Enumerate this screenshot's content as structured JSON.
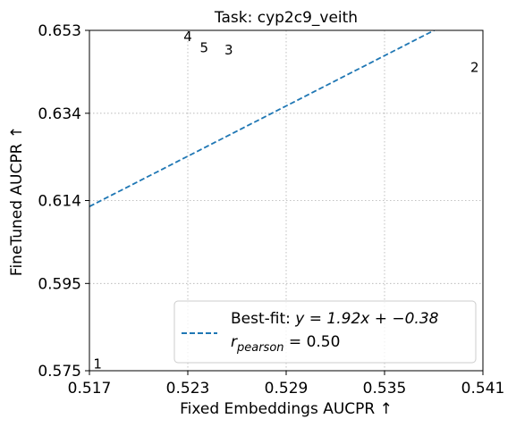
{
  "chart_data": {
    "type": "scatter",
    "title": "Task: cyp2c9_veith",
    "xlabel": "Fixed Embeddings AUCPR ↑",
    "ylabel": "FineTuned AUCPR ↑",
    "xlim": [
      0.517,
      0.541
    ],
    "ylim": [
      0.575,
      0.653
    ],
    "x_ticks": [
      "0.517",
      "0.523",
      "0.529",
      "0.535",
      "0.541"
    ],
    "y_ticks": [
      "0.575",
      "0.595",
      "0.614",
      "0.634",
      "0.653"
    ],
    "grid": true,
    "points": [
      {
        "label": "1",
        "x": 0.5175,
        "y": 0.5755
      },
      {
        "label": "2",
        "x": 0.5405,
        "y": 0.6435
      },
      {
        "label": "3",
        "x": 0.5255,
        "y": 0.6475
      },
      {
        "label": "4",
        "x": 0.523,
        "y": 0.6505
      },
      {
        "label": "5",
        "x": 0.524,
        "y": 0.648
      }
    ],
    "fit_line": {
      "slope": 1.92,
      "intercept": -0.38,
      "style": "dashed",
      "color": "#1f77b4"
    },
    "legend": {
      "placement": "lower-right",
      "line1_prefix": "Best-fit: ",
      "line1_math": "y = 1.92x + −0.38",
      "line2_main": "r",
      "line2_sub": "pearson",
      "line2_rest": " = 0.50"
    }
  }
}
